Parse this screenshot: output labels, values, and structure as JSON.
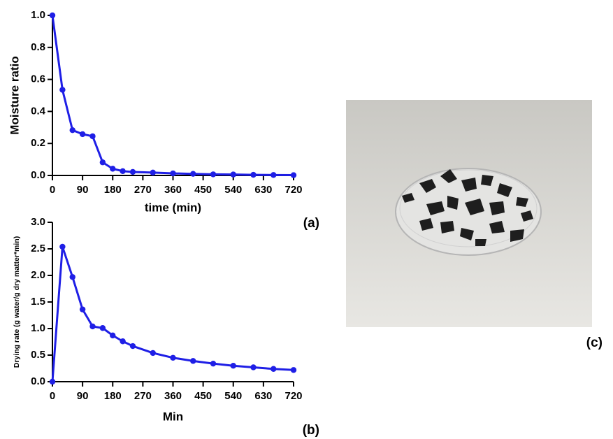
{
  "chart_data": [
    {
      "type": "line",
      "panel_label": "(a)",
      "x_label": "time (min)",
      "y_label": "Moisture ratio",
      "x": [
        0,
        30,
        60,
        90,
        120,
        150,
        180,
        210,
        240,
        300,
        360,
        420,
        480,
        540,
        600,
        660,
        720
      ],
      "values": [
        1.0,
        0.535,
        0.283,
        0.258,
        0.245,
        0.082,
        0.042,
        0.027,
        0.022,
        0.018,
        0.013,
        0.01,
        0.007,
        0.006,
        0.004,
        0.003,
        0.002
      ],
      "color": "#1f1fe6",
      "xlim": [
        0,
        720
      ],
      "xticks": [
        0,
        90,
        180,
        270,
        360,
        450,
        540,
        630,
        720
      ],
      "ylim": [
        0,
        1
      ],
      "yticks": [
        {
          "value": 0,
          "label": "0.0"
        },
        0.2,
        0.4,
        0.6,
        0.8,
        {
          "value": 1,
          "label": "1.0"
        }
      ]
    },
    {
      "type": "line",
      "panel_label": "(b)",
      "x_label": "Min",
      "y_label": "Drying rate (g water/g dry matter*min)",
      "x": [
        0,
        30,
        60,
        90,
        120,
        150,
        180,
        210,
        240,
        300,
        360,
        420,
        480,
        540,
        600,
        660,
        720
      ],
      "values": [
        0,
        2.54,
        1.97,
        1.36,
        1.04,
        1.01,
        0.87,
        0.76,
        0.67,
        0.54,
        0.45,
        0.39,
        0.34,
        0.3,
        0.27,
        0.24,
        0.22
      ],
      "color": "#1f1fe6",
      "xlim": [
        0,
        720
      ],
      "xticks": [
        0,
        90,
        180,
        270,
        360,
        450,
        540,
        630,
        720
      ],
      "ylim": [
        0,
        3
      ],
      "yticks": [
        {
          "value": 0,
          "label": "0.0"
        },
        0.5,
        {
          "value": 1,
          "label": "1.0"
        },
        1.5,
        {
          "value": 2,
          "label": "2.0"
        },
        2.5,
        {
          "value": 3,
          "label": "3.0"
        }
      ]
    }
  ],
  "photo": {
    "panel_label": "(c)"
  }
}
